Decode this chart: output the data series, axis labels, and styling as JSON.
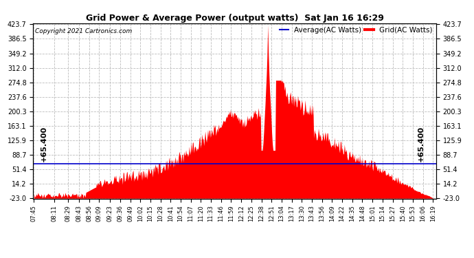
{
  "title": "Grid Power & Average Power (output watts)  Sat Jan 16 16:29",
  "copyright": "Copyright 2021 Cartronics.com",
  "legend_avg": "Average(AC Watts)",
  "legend_grid": "Grid(AC Watts)",
  "ylabel_left": "+65.400",
  "ylabel_right": "+65.400",
  "avg_line_value": 65.4,
  "ymin": -23.0,
  "ymax": 423.7,
  "yticks": [
    -23.0,
    14.2,
    51.4,
    88.7,
    125.9,
    163.1,
    200.3,
    237.6,
    274.8,
    312.0,
    349.2,
    386.5,
    423.7
  ],
  "background_color": "#ffffff",
  "grid_color": "#bbbbbb",
  "fill_color": "#ff0000",
  "line_color": "#0000cc",
  "title_color": "#000000",
  "copyright_color": "#000000",
  "avg_legend_color": "#0000cc",
  "grid_legend_color": "#ff0000",
  "x_labels": [
    "07:45",
    "08:11",
    "08:29",
    "08:43",
    "08:56",
    "09:09",
    "09:23",
    "09:36",
    "09:49",
    "10:02",
    "10:15",
    "10:28",
    "10:41",
    "10:54",
    "11:07",
    "11:20",
    "11:33",
    "11:46",
    "11:59",
    "12:12",
    "12:25",
    "12:38",
    "12:51",
    "13:04",
    "13:17",
    "13:30",
    "13:43",
    "13:56",
    "14:09",
    "14:22",
    "14:35",
    "14:48",
    "15:01",
    "15:14",
    "15:27",
    "15:40",
    "15:53",
    "16:06",
    "16:19"
  ]
}
